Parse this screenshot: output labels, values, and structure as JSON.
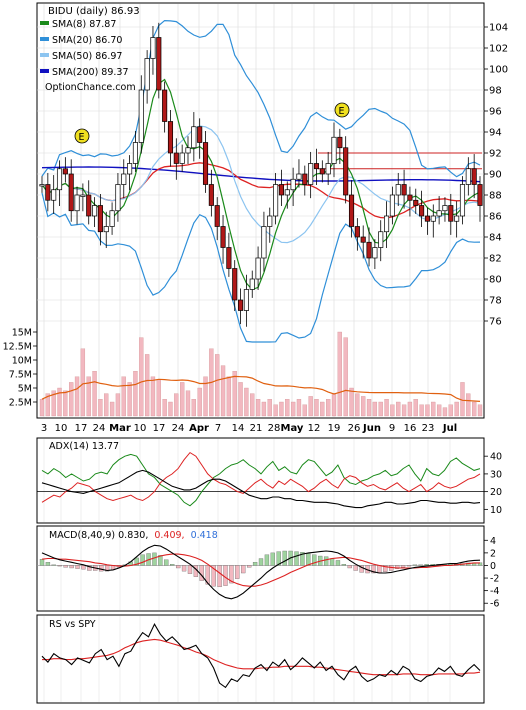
{
  "chart_data": [
    {
      "type": "candlestick",
      "symbol_title": "BIDU (daily) 86.93",
      "watermark": "OptionChance.com",
      "yticks": [
        "104",
        "102",
        "100",
        "98",
        "96",
        "94",
        "92",
        "90",
        "88",
        "86",
        "84",
        "82",
        "80",
        "78",
        "76"
      ],
      "xticks": [
        "3",
        "10",
        "17",
        "24",
        "Mar",
        "10",
        "17",
        "24",
        "Apr",
        "7",
        "14",
        "21",
        "28",
        "May",
        "12",
        "19",
        "26",
        "Jun",
        "9",
        "16",
        "23",
        "Jul"
      ],
      "legend": [
        {
          "name": "SMA(8) 87.87",
          "color": "#1a8a1a"
        },
        {
          "name": "SMA(20) 86.70",
          "color": "#2f8fd8"
        },
        {
          "name": "SMA(50) 86.97",
          "color": "#8cc4f0"
        },
        {
          "name": "SMA(200) 89.37",
          "color": "#1010c0"
        }
      ],
      "colors": {
        "up": "#ffffff",
        "down": "#b01818",
        "bollinger": "#2f8fd8",
        "sma8": "#1a8a1a",
        "sma50": "#dd2222",
        "sma200": "#1010c0",
        "volume": "#f2b8c0",
        "volume_avg": "#e06010",
        "yellow": "#f0e020"
      },
      "earnings_markers": [
        "E",
        "E"
      ],
      "close_series": [
        89,
        87.5,
        88.5,
        90.5,
        90,
        86.5,
        88,
        88,
        86,
        87,
        84.5,
        85,
        86.5,
        89,
        90,
        91,
        93,
        98,
        101,
        103,
        98,
        95,
        92,
        91,
        92,
        92.5,
        94.5,
        93,
        89,
        87,
        85,
        83,
        81,
        78,
        77,
        79,
        80,
        82,
        85,
        86,
        89,
        88,
        88.5,
        89.5,
        90,
        89,
        91,
        90.5,
        90,
        91,
        93.5,
        92.5,
        88,
        85,
        84,
        83.5,
        82,
        83,
        84.5,
        86,
        88,
        89,
        88,
        87.5,
        87,
        86,
        85.5,
        86,
        86.5,
        87,
        85.5,
        86,
        89,
        90.5,
        89,
        87
      ],
      "volume_labels": [
        "15M",
        "12.5M",
        "10M",
        "7.5M",
        "5M",
        "2.5M"
      ],
      "volume_values_m": [
        3,
        4,
        4.5,
        5,
        4.5,
        6,
        7,
        12,
        7,
        8,
        3,
        4,
        2.5,
        4,
        7,
        6,
        8,
        14,
        11,
        7,
        6.5,
        3,
        2.5,
        4,
        6,
        4.5,
        3,
        5,
        7,
        12,
        11,
        9,
        7,
        8,
        6,
        5,
        4,
        3,
        2.5,
        3,
        2,
        2.5,
        3,
        2.5,
        3,
        2,
        3.5,
        3,
        2.5,
        3,
        4,
        15,
        14,
        5,
        4,
        3.5,
        3,
        2.5,
        2.5,
        3,
        2,
        2.5,
        2,
        2.5,
        3,
        2,
        2,
        2.5,
        2,
        1.5,
        2,
        2.5,
        6,
        4,
        2.5,
        2
      ]
    },
    {
      "type": "line",
      "title": "ADX(14) 13.77",
      "yticks": [
        "40",
        "30",
        "20",
        "10"
      ],
      "colors": {
        "adx": "#000000",
        "plus_di": "#1a8a1a",
        "minus_di": "#dd2222"
      },
      "adx": [
        25,
        24,
        23,
        22,
        21,
        20,
        19.5,
        19,
        20,
        21,
        22,
        23,
        24,
        25,
        27,
        29,
        31,
        32,
        31,
        29,
        27,
        25,
        23,
        22,
        21,
        21,
        22,
        24,
        26,
        27,
        27,
        26,
        24,
        22,
        20,
        18,
        17,
        16,
        16,
        17,
        17,
        16,
        16,
        15,
        15,
        14.5,
        14,
        14,
        14,
        13.5,
        13,
        12,
        11.5,
        11,
        11,
        12,
        12.5,
        13,
        14,
        14,
        13,
        13,
        13.5,
        14,
        15,
        15,
        14.5,
        14,
        14,
        13.5,
        13.5,
        14,
        14,
        13.5,
        13.8
      ],
      "plus_di": [
        32,
        30,
        33,
        31,
        28,
        30,
        28,
        26,
        27,
        30,
        31,
        30,
        35,
        38,
        40,
        41,
        40,
        35,
        30,
        28,
        24,
        22,
        20,
        18,
        14,
        12,
        15,
        20,
        24,
        28,
        30,
        33,
        35,
        36,
        38,
        35,
        33,
        30,
        34,
        37,
        32,
        34,
        31,
        30,
        35,
        38,
        37,
        33,
        29,
        31,
        35,
        28,
        25,
        24,
        26,
        27,
        29,
        30,
        32,
        29,
        30,
        33,
        35,
        30,
        26,
        33,
        30,
        29,
        32,
        37,
        39,
        36,
        34,
        32,
        33
      ],
      "minus_di": [
        14,
        16,
        18,
        17,
        20,
        22,
        25,
        24,
        23,
        20,
        18,
        16,
        15,
        16,
        17,
        18,
        16,
        15,
        17,
        20,
        25,
        28,
        30,
        33,
        38,
        42,
        40,
        35,
        30,
        27,
        25,
        24,
        22,
        20,
        19,
        22,
        25,
        27,
        24,
        22,
        26,
        24,
        27,
        25,
        23,
        20,
        22,
        25,
        27,
        24,
        22,
        27,
        29,
        28,
        25,
        23,
        24,
        22,
        21,
        23,
        25,
        22,
        20,
        22,
        24,
        20,
        22,
        25,
        23,
        22,
        23,
        25,
        27,
        28,
        30
      ]
    },
    {
      "type": "bar",
      "title": "MACD(8,40,9) 0.830, 0.409, 0.418",
      "label_parts": {
        "prefix": "MACD(8,40,9) 0.830,",
        "signal": "0.409,",
        "hist": "0.418"
      },
      "yticks": [
        "4",
        "2",
        "0",
        "-2",
        "-4",
        "-6"
      ],
      "colors": {
        "macd": "#000000",
        "signal": "#dd2222",
        "hist_pos": "#9fd39f",
        "hist_neg": "#f2b8c0"
      },
      "macd": [
        2.0,
        1.6,
        1.2,
        0.9,
        0.7,
        0.5,
        0.3,
        0.1,
        -0.2,
        -0.4,
        -0.6,
        -0.8,
        -0.7,
        -0.4,
        0.0,
        0.6,
        1.4,
        2.2,
        2.8,
        3.2,
        3.1,
        2.6,
        2.0,
        1.4,
        0.8,
        0.2,
        -0.6,
        -1.6,
        -2.8,
        -3.8,
        -4.6,
        -5.1,
        -5.3,
        -5.0,
        -4.4,
        -3.6,
        -2.8,
        -2.0,
        -1.1,
        -0.4,
        0.2,
        0.7,
        1.2,
        1.5,
        1.8,
        2.0,
        2.1,
        2.2,
        2.3,
        2.2,
        2.0,
        1.5,
        0.8,
        0.2,
        -0.3,
        -0.7,
        -1.0,
        -1.2,
        -1.2,
        -1.1,
        -0.9,
        -0.7,
        -0.5,
        -0.3,
        -0.2,
        -0.1,
        0.0,
        0.1,
        0.2,
        0.3,
        0.3,
        0.5,
        0.7,
        0.8,
        0.83
      ],
      "signal": [
        1.0,
        1.1,
        1.1,
        1.0,
        1.0,
        0.9,
        0.8,
        0.7,
        0.6,
        0.4,
        0.3,
        0.1,
        0.0,
        -0.1,
        -0.1,
        0.0,
        0.2,
        0.5,
        0.9,
        1.2,
        1.5,
        1.7,
        1.8,
        1.8,
        1.7,
        1.5,
        1.2,
        0.8,
        0.2,
        -0.5,
        -1.2,
        -1.9,
        -2.5,
        -2.9,
        -3.2,
        -3.3,
        -3.3,
        -3.1,
        -2.8,
        -2.4,
        -2.0,
        -1.6,
        -1.1,
        -0.7,
        -0.3,
        0.1,
        0.4,
        0.7,
        0.9,
        1.1,
        1.2,
        1.3,
        1.2,
        1.0,
        0.8,
        0.5,
        0.2,
        0.0,
        -0.2,
        -0.3,
        -0.4,
        -0.4,
        -0.4,
        -0.4,
        -0.3,
        -0.3,
        -0.2,
        -0.1,
        0.0,
        0.0,
        0.1,
        0.2,
        0.3,
        0.4,
        0.41
      ],
      "histogram": [
        1.0,
        0.5,
        0.1,
        -0.1,
        -0.3,
        -0.4,
        -0.5,
        -0.6,
        -0.8,
        -0.8,
        -0.9,
        -0.9,
        -0.7,
        -0.3,
        0.1,
        0.6,
        1.2,
        1.7,
        1.9,
        2.0,
        1.6,
        0.9,
        0.2,
        -0.4,
        -0.9,
        -1.3,
        -1.8,
        -2.4,
        -3.0,
        -3.3,
        -3.4,
        -3.2,
        -2.8,
        -2.1,
        -1.2,
        -0.3,
        0.5,
        1.1,
        1.7,
        2.0,
        2.2,
        2.3,
        2.3,
        2.2,
        2.1,
        1.9,
        1.7,
        1.5,
        1.4,
        1.1,
        0.8,
        0.2,
        -0.4,
        -0.8,
        -1.1,
        -1.2,
        -1.2,
        -1.2,
        -1.0,
        -0.8,
        -0.5,
        -0.3,
        -0.1,
        0.1,
        0.1,
        0.2,
        0.2,
        0.2,
        0.2,
        0.3,
        0.2,
        0.3,
        0.4,
        0.4,
        0.42
      ]
    },
    {
      "type": "line",
      "title": "RS vs SPY",
      "colors": {
        "rs": "#000000",
        "rs_ma": "#dd2222"
      },
      "rs": [
        52,
        45,
        55,
        50,
        48,
        42,
        50,
        47,
        44,
        55,
        60,
        48,
        52,
        40,
        55,
        58,
        70,
        80,
        75,
        90,
        78,
        70,
        75,
        68,
        60,
        62,
        65,
        55,
        50,
        38,
        20,
        15,
        25,
        22,
        30,
        28,
        38,
        42,
        35,
        45,
        40,
        48,
        36,
        42,
        50,
        44,
        38,
        45,
        35,
        40,
        30,
        24,
        35,
        40,
        28,
        22,
        25,
        30,
        28,
        35,
        30,
        40,
        36,
        25,
        22,
        28,
        30,
        38,
        34,
        40,
        30,
        28,
        36,
        42,
        35
      ],
      "rs_ma": [
        48,
        48,
        49,
        49,
        48,
        48,
        49,
        49,
        50,
        51,
        52,
        53,
        55,
        58,
        62,
        65,
        68,
        70,
        71,
        72,
        71,
        69,
        67,
        65,
        62,
        60,
        57,
        55,
        52,
        48,
        45,
        42,
        40,
        38,
        37,
        37,
        37,
        38,
        38,
        39,
        39,
        40,
        40,
        40,
        40,
        40,
        39,
        39,
        38,
        37,
        36,
        35,
        34,
        33,
        32,
        31,
        30,
        30,
        30,
        30,
        30,
        31,
        31,
        31,
        30,
        30,
        30,
        31,
        31,
        31,
        31,
        31,
        32,
        32,
        33
      ]
    }
  ]
}
